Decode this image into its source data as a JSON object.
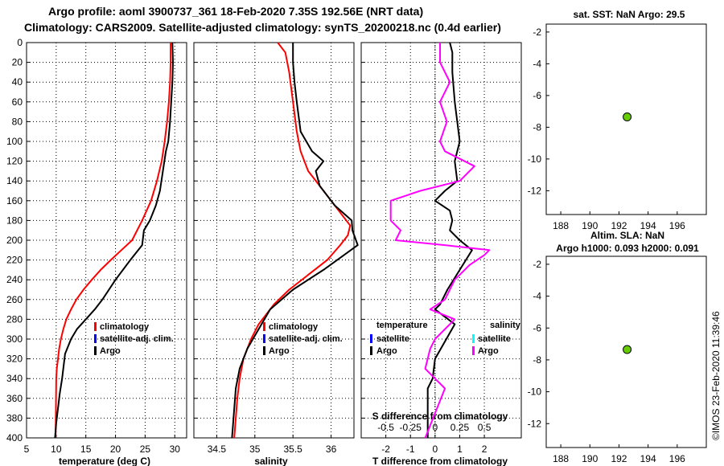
{
  "title": {
    "line1": "Argo profile: aoml 3900737_361 18-Feb-2020 7.35S 192.56E (NRT data)",
    "line2": "Climatology: CARS2009. Satellite-adjusted climatology: synTS_20200218.nc (0.4d earlier)"
  },
  "depth_ticks": [
    "0",
    "20",
    "40",
    "60",
    "80",
    "100",
    "120",
    "140",
    "160",
    "180",
    "200",
    "220",
    "240",
    "260",
    "280",
    "300",
    "320",
    "340",
    "360",
    "380",
    "400"
  ],
  "footer": "©IMOS 23-Feb-2020 11:39:46",
  "colors": {
    "climatology": "#ff0000",
    "satellite": "#0000ff",
    "argo": "#000000",
    "sal_diff": "#ff00ff",
    "sal_sat": "#00ffff",
    "marker": "#66cc00"
  },
  "chart_data": [
    {
      "id": "temperature",
      "type": "line",
      "xlabel": "temperature (deg C)",
      "xlim": [
        5,
        32
      ],
      "ylim": [
        0,
        400
      ],
      "xticks": [
        "5",
        "10",
        "15",
        "20",
        "25",
        "30"
      ],
      "legend": [
        "climatology",
        "satellite-adj. clim.",
        "Argo"
      ],
      "series": [
        {
          "name": "climatology",
          "color": "red",
          "x": [
            29.3,
            29.3,
            29.2,
            29.0,
            28.7,
            28.3,
            27.8,
            27.0,
            26.0,
            24.5,
            22.8,
            21.0,
            19.2,
            17.5,
            16.0,
            14.6,
            13.4,
            12.5,
            11.7,
            11.2,
            10.8,
            10.5,
            10.3,
            10.1,
            10.0,
            9.9
          ],
          "y": [
            0,
            20,
            40,
            60,
            80,
            100,
            120,
            140,
            160,
            180,
            200,
            210,
            220,
            230,
            240,
            250,
            260,
            270,
            280,
            290,
            300,
            310,
            320,
            330,
            340,
            400
          ]
        },
        {
          "name": "Argo",
          "color": "black",
          "x": [
            29.6,
            29.7,
            29.6,
            29.4,
            29.2,
            28.9,
            28.5,
            28.0,
            27.5,
            26.8,
            25.8,
            24.8,
            24.5,
            22.5,
            20.0,
            17.8,
            16.5,
            15.0,
            13.5,
            12.5,
            11.5,
            11.0,
            10.6,
            10.3,
            10.0,
            9.8
          ],
          "y": [
            0,
            20,
            40,
            60,
            80,
            100,
            110,
            130,
            150,
            165,
            180,
            190,
            205,
            220,
            240,
            260,
            270,
            280,
            290,
            300,
            315,
            340,
            355,
            370,
            385,
            400
          ]
        }
      ]
    },
    {
      "id": "salinity",
      "type": "line",
      "xlabel": "salinity",
      "xlim": [
        34.2,
        36.3
      ],
      "ylim": [
        0,
        400
      ],
      "xticks": [
        "34.5",
        "35",
        "35.5",
        "36"
      ],
      "legend": [
        "climatology",
        "satellite-adj. clim.",
        "Argo"
      ],
      "series": [
        {
          "name": "climatology",
          "color": "red",
          "x": [
            35.3,
            35.4,
            35.45,
            35.5,
            35.55,
            35.6,
            35.7,
            35.85,
            36.0,
            36.15,
            36.25,
            36.22,
            36.12,
            35.95,
            35.7,
            35.45,
            35.25,
            35.05,
            34.95,
            34.85,
            34.8,
            34.77,
            34.75,
            34.73
          ],
          "y": [
            0,
            10,
            30,
            60,
            90,
            110,
            130,
            145,
            160,
            175,
            185,
            195,
            205,
            220,
            235,
            250,
            265,
            285,
            300,
            320,
            340,
            360,
            380,
            400
          ]
        },
        {
          "name": "Argo",
          "color": "black",
          "x": [
            35.5,
            35.5,
            35.52,
            35.55,
            35.6,
            35.75,
            35.9,
            35.8,
            35.85,
            36.05,
            36.27,
            36.28,
            36.35,
            35.9,
            35.5,
            35.2,
            35.05,
            34.9,
            34.8,
            34.75,
            34.72,
            34.7
          ],
          "y": [
            0,
            20,
            40,
            60,
            90,
            110,
            120,
            130,
            145,
            165,
            180,
            190,
            205,
            230,
            250,
            270,
            290,
            310,
            330,
            350,
            380,
            400
          ]
        }
      ]
    },
    {
      "id": "differences",
      "type": "line",
      "xlabel": "T difference from climatology",
      "x2label": "S difference from climatology",
      "xlim": [
        -3,
        3.5
      ],
      "ylim": [
        0,
        400
      ],
      "xticks": [
        "-2",
        "-1",
        "0",
        "1",
        "2"
      ],
      "x2ticks": [
        "-0.5",
        "-0.25",
        "0",
        "0.25",
        "0.5"
      ],
      "legend_temperature_title": "temperature",
      "legend_salinity_title": "salinity",
      "legend_items": [
        "satellite",
        "Argo",
        "satellite",
        "Argo"
      ],
      "series": [
        {
          "name": "T diff (Argo)",
          "color": "black",
          "x": [
            0.6,
            0.7,
            0.7,
            0.8,
            0.9,
            1.0,
            0.8,
            0.9,
            0.4,
            0.0,
            0.6,
            0.7,
            0.6,
            1.0,
            1.5,
            1.0,
            0.5,
            0.2,
            0.0,
            0.8,
            0.0,
            -0.1,
            -0.3,
            -0.3,
            -0.3
          ],
          "y": [
            0,
            10,
            30,
            60,
            80,
            100,
            120,
            140,
            150,
            160,
            170,
            180,
            190,
            200,
            210,
            230,
            250,
            265,
            270,
            285,
            320,
            340,
            350,
            380,
            400
          ]
        },
        {
          "name": "S diff (Argo)",
          "color": "magenta",
          "x": [
            0.05,
            0.05,
            0.15,
            0.05,
            0.12,
            0.05,
            0.1,
            0.4,
            0.25,
            -0.15,
            -0.45,
            -0.45,
            -0.35,
            -0.4,
            0.1,
            0.55,
            0.5,
            0.35,
            0.2,
            0.1,
            -0.05,
            0.2,
            0.0,
            -0.05,
            -0.1,
            0.0,
            0.1,
            -0.1
          ],
          "y": [
            0,
            20,
            40,
            60,
            80,
            100,
            110,
            125,
            140,
            150,
            160,
            180,
            190,
            200,
            205,
            210,
            215,
            225,
            240,
            260,
            270,
            280,
            300,
            310,
            330,
            340,
            350,
            400
          ]
        }
      ]
    },
    {
      "id": "sst_map",
      "type": "scatter",
      "title": "sat. SST: NaN Argo: 29.5",
      "xlim": [
        187,
        198
      ],
      "ylim": [
        -13.5,
        -1.5
      ],
      "xticks": [
        "188",
        "190",
        "192",
        "194",
        "196"
      ],
      "yticks": [
        "-2",
        "-4",
        "-6",
        "-8",
        "-10",
        "-12"
      ],
      "points": [
        {
          "x": 192.56,
          "y": -7.35
        }
      ]
    },
    {
      "id": "sla_map",
      "type": "scatter",
      "title": "Altim. SLA: NaN",
      "subtitle": "Argo h1000: 0.093 h2000: 0.091",
      "xlim": [
        187,
        198
      ],
      "ylim": [
        -13.5,
        -1.5
      ],
      "xticks": [
        "188",
        "190",
        "192",
        "194",
        "196"
      ],
      "yticks": [
        "-2",
        "-4",
        "-6",
        "-8",
        "-10",
        "-12"
      ],
      "points": [
        {
          "x": 192.56,
          "y": -7.35
        }
      ]
    }
  ]
}
